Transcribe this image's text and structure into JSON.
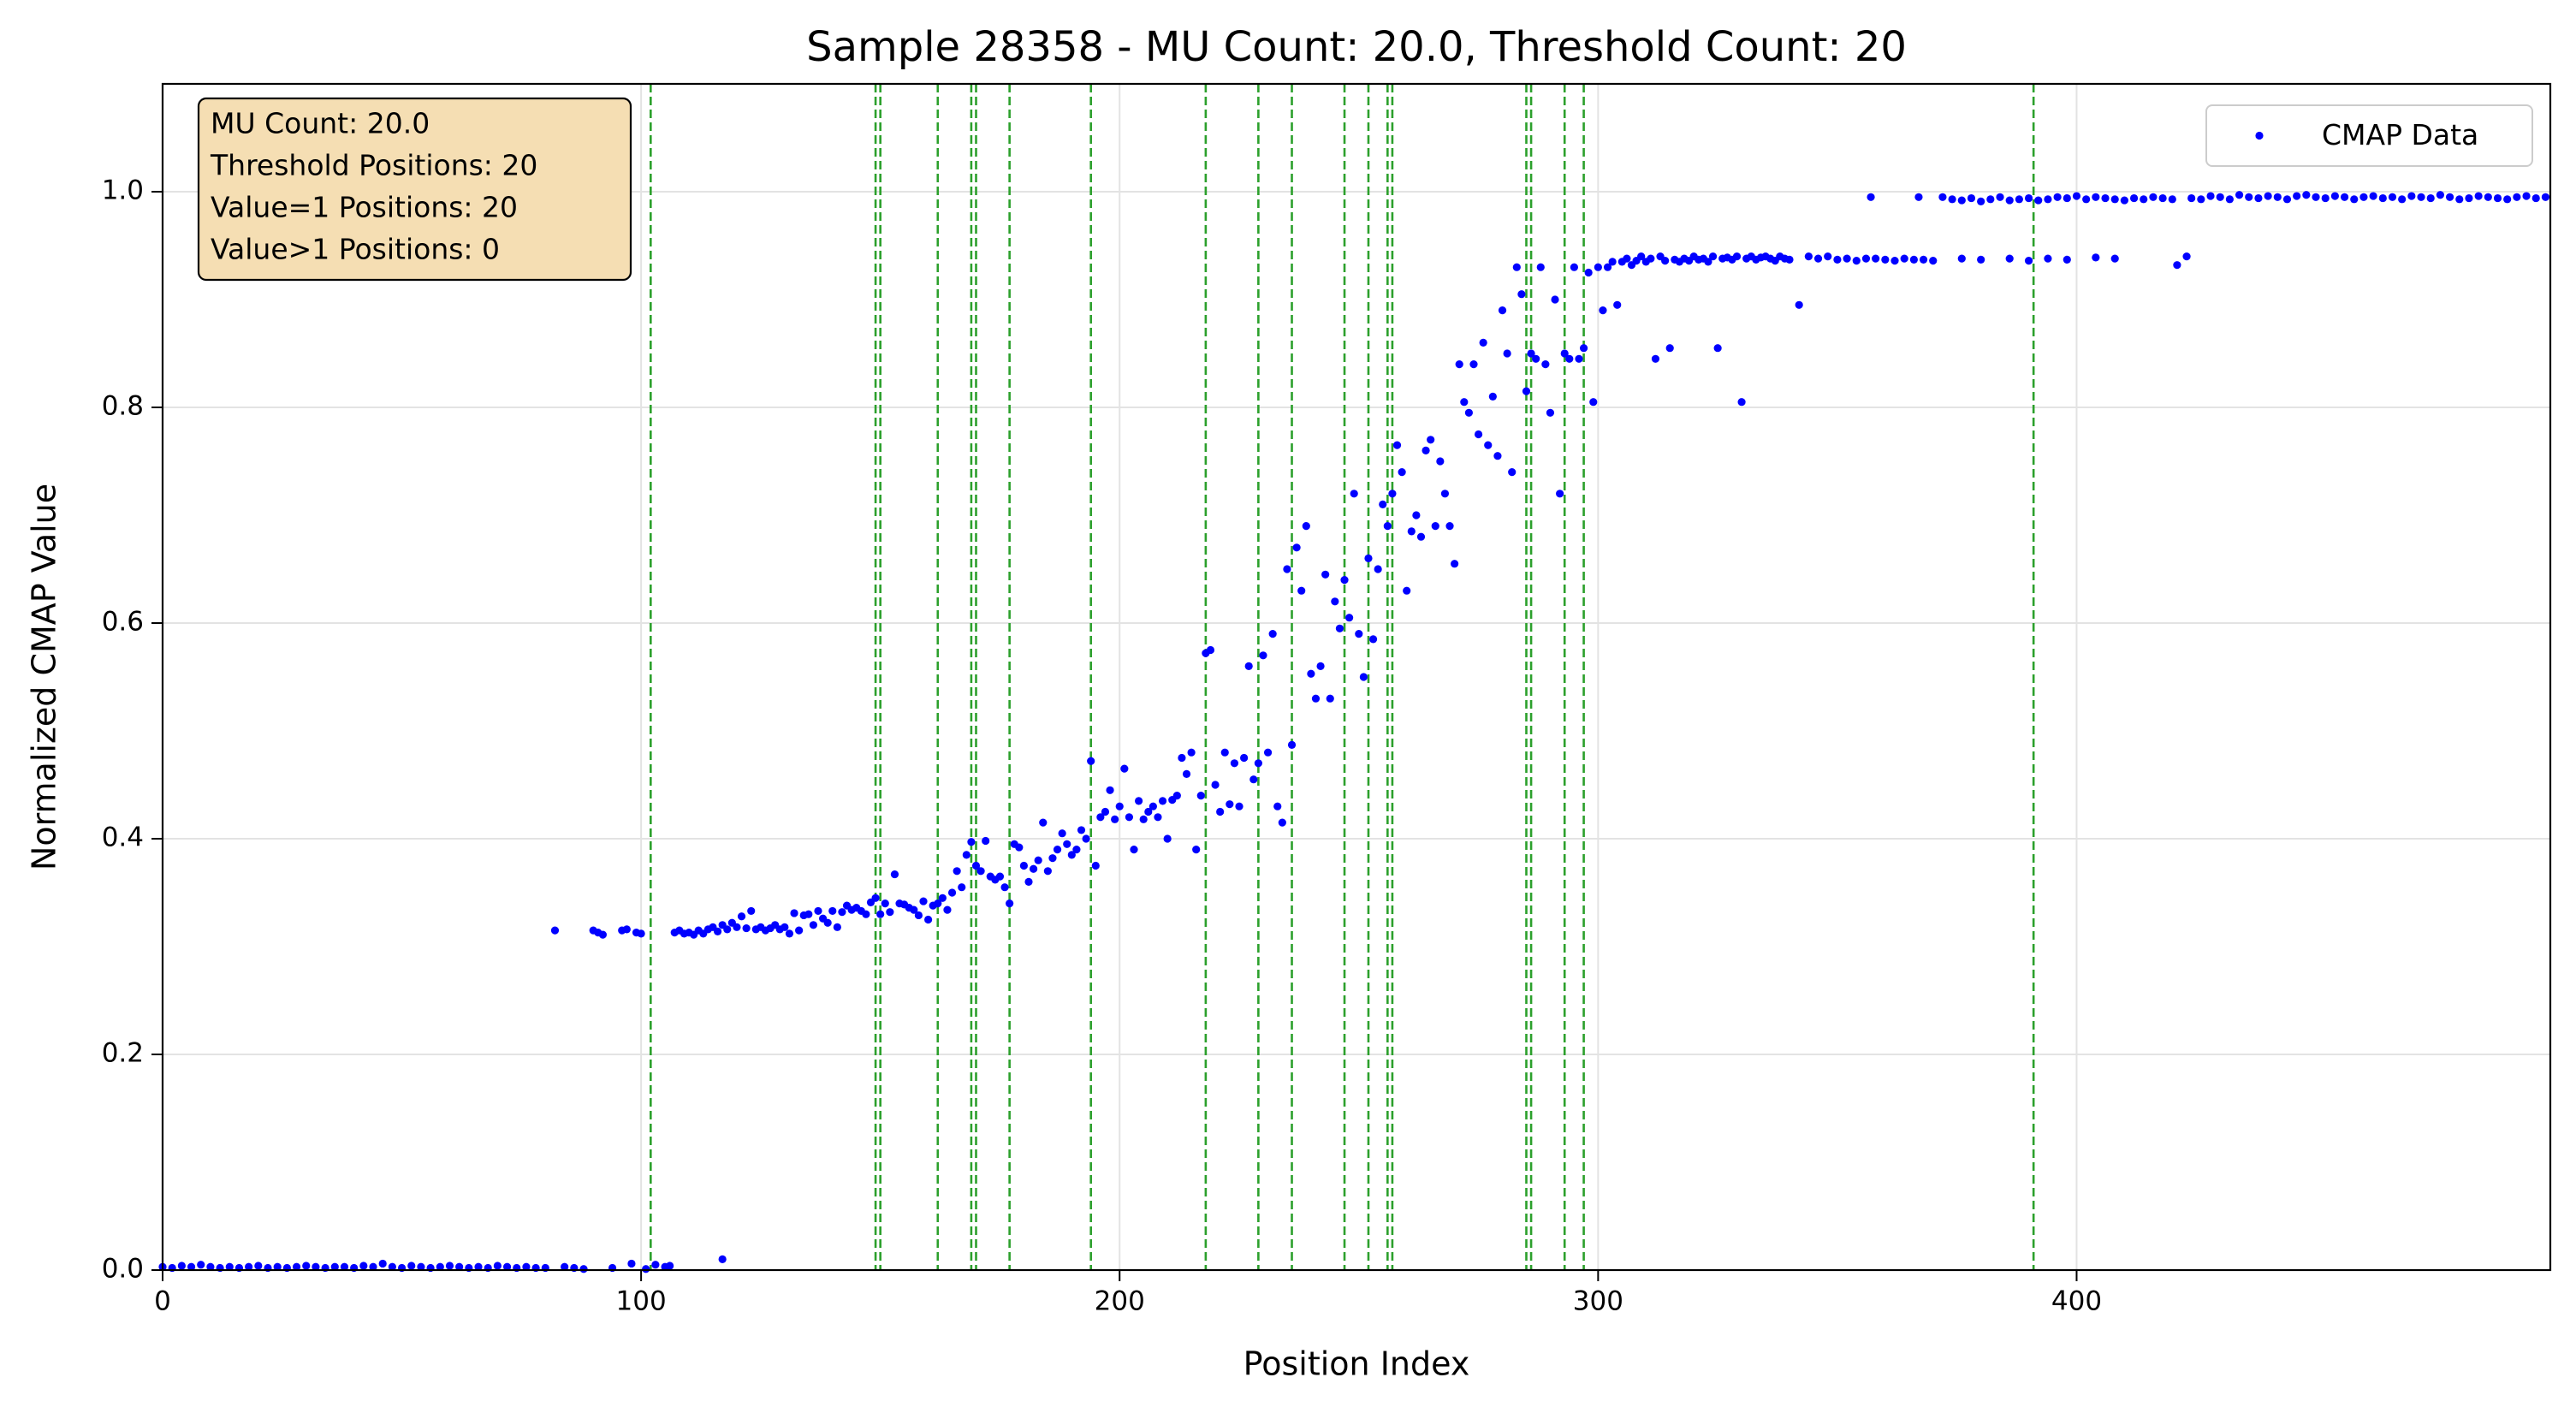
{
  "chart_data": {
    "type": "scatter",
    "title": "Sample 28358 - MU Count: 20.0, Threshold Count: 20",
    "xlabel": "Position Index",
    "ylabel": "Normalized CMAP Value",
    "xlim": [
      0,
      499
    ],
    "ylim": [
      0,
      1.1
    ],
    "xticks": [
      0,
      100,
      200,
      300,
      400
    ],
    "yticks": [
      {
        "value": 0,
        "label": "0.0"
      },
      0.2,
      0.4,
      0.6,
      0.8,
      {
        "value": 1,
        "label": "1.0"
      }
    ],
    "grid": true,
    "legend": "upper right",
    "annotation": [
      "MU Count: 20.0",
      "Threshold Positions: 20",
      "Value=1 Positions: 20",
      "Value>1 Positions: 0"
    ],
    "vlines": {
      "color": "#2ca02c",
      "values": [
        102,
        149,
        150,
        162,
        169,
        170,
        177,
        194,
        218,
        229,
        236,
        247,
        252,
        256,
        257,
        285,
        286,
        293,
        297,
        391
      ]
    },
    "x": [
      0,
      2,
      4,
      6,
      8,
      10,
      12,
      14,
      16,
      18,
      20,
      22,
      24,
      26,
      28,
      30,
      32,
      34,
      36,
      38,
      40,
      42,
      44,
      46,
      48,
      50,
      52,
      54,
      56,
      58,
      60,
      62,
      64,
      66,
      68,
      70,
      72,
      74,
      76,
      78,
      80,
      82,
      84,
      86,
      88,
      90,
      91,
      92,
      94,
      96,
      97,
      98,
      99,
      100,
      101,
      103,
      105,
      106,
      117,
      107,
      108,
      109,
      110,
      111,
      112,
      113,
      114,
      115,
      116,
      117,
      118,
      119,
      120,
      121,
      122,
      123,
      124,
      125,
      126,
      127,
      128,
      129,
      130,
      131,
      132,
      133,
      134,
      135,
      136,
      137,
      138,
      139,
      140,
      141,
      142,
      143,
      144,
      145,
      146,
      147,
      148,
      149,
      150,
      151,
      152,
      153,
      154,
      155,
      156,
      157,
      158,
      159,
      160,
      161,
      162,
      163,
      164,
      165,
      166,
      167,
      168,
      169,
      170,
      171,
      172,
      173,
      174,
      175,
      176,
      177,
      178,
      179,
      180,
      181,
      182,
      183,
      184,
      185,
      186,
      187,
      188,
      189,
      190,
      191,
      192,
      193,
      194,
      195,
      196,
      197,
      198,
      199,
      200,
      201,
      202,
      203,
      204,
      205,
      206,
      207,
      208,
      209,
      210,
      211,
      212,
      213,
      214,
      215,
      216,
      217,
      218,
      219,
      220,
      221,
      222,
      223,
      224,
      225,
      226,
      227,
      228,
      229,
      230,
      231,
      232,
      233,
      234,
      235,
      236,
      237,
      238,
      239,
      240,
      241,
      242,
      243,
      244,
      245,
      246,
      247,
      248,
      249,
      250,
      251,
      252,
      253,
      254,
      255,
      256,
      257,
      258,
      259,
      260,
      261,
      262,
      263,
      264,
      265,
      266,
      267,
      268,
      269,
      270,
      271,
      272,
      273,
      274,
      275,
      276,
      277,
      278,
      279,
      280,
      281,
      282,
      283,
      284,
      285,
      286,
      287,
      288,
      289,
      290,
      291,
      292,
      293,
      294,
      295,
      296,
      297,
      298,
      299,
      300,
      301,
      302,
      303,
      304,
      305,
      306,
      307,
      308,
      309,
      310,
      311,
      312,
      313,
      314,
      315,
      316,
      317,
      318,
      319,
      320,
      321,
      322,
      323,
      324,
      325,
      326,
      327,
      328,
      329,
      330,
      331,
      332,
      333,
      334,
      335,
      336,
      337,
      338,
      339,
      340,
      342,
      344,
      346,
      348,
      350,
      352,
      354,
      356,
      357,
      358,
      360,
      362,
      364,
      366,
      367,
      368,
      370,
      372,
      374,
      376,
      378,
      380,
      382,
      384,
      386,
      388,
      390,
      392,
      394,
      396,
      398,
      400,
      402,
      404,
      406,
      408,
      410,
      412,
      414,
      416,
      418,
      420,
      376,
      380,
      386,
      390,
      394,
      398,
      404,
      408,
      421,
      423,
      424,
      426,
      428,
      430,
      432,
      434,
      436,
      438,
      440,
      442,
      444,
      446,
      448,
      450,
      452,
      454,
      456,
      458,
      460,
      462,
      464,
      466,
      468,
      470,
      472,
      474,
      476,
      478,
      480,
      482,
      484,
      486,
      488,
      490,
      492,
      494,
      496,
      498
    ],
    "series": [
      {
        "name": "CMAP Data",
        "color": "#0000ff",
        "values": [
          0.003,
          0.002,
          0.004,
          0.003,
          0.005,
          0.003,
          0.002,
          0.003,
          0.002,
          0.003,
          0.004,
          0.002,
          0.003,
          0.002,
          0.003,
          0.004,
          0.003,
          0.002,
          0.003,
          0.003,
          0.002,
          0.004,
          0.003,
          0.006,
          0.003,
          0.002,
          0.004,
          0.003,
          0.002,
          0.003,
          0.004,
          0.003,
          0.002,
          0.003,
          0.002,
          0.004,
          0.003,
          0.002,
          0.003,
          0.002,
          0.002,
          0.315,
          0.003,
          0.002,
          0.001,
          0.315,
          0.313,
          0.311,
          0.002,
          0.315,
          0.316,
          0.006,
          0.313,
          0.312,
          0.001,
          0.005,
          0.003,
          0.004,
          0.01,
          0.313,
          0.315,
          0.312,
          0.313,
          0.311,
          0.315,
          0.312,
          0.316,
          0.318,
          0.314,
          0.32,
          0.316,
          0.322,
          0.318,
          0.328,
          0.317,
          0.333,
          0.316,
          0.318,
          0.315,
          0.317,
          0.32,
          0.316,
          0.318,
          0.312,
          0.331,
          0.315,
          0.329,
          0.33,
          0.32,
          0.333,
          0.326,
          0.322,
          0.333,
          0.318,
          0.332,
          0.338,
          0.334,
          0.336,
          0.333,
          0.33,
          0.341,
          0.345,
          0.33,
          0.34,
          0.332,
          0.367,
          0.34,
          0.339,
          0.336,
          0.334,
          0.329,
          0.342,
          0.325,
          0.338,
          0.34,
          0.345,
          0.334,
          0.35,
          0.37,
          0.355,
          0.385,
          0.397,
          0.375,
          0.37,
          0.398,
          0.365,
          0.362,
          0.365,
          0.355,
          0.34,
          0.395,
          0.392,
          0.375,
          0.36,
          0.372,
          0.38,
          0.415,
          0.37,
          0.382,
          0.39,
          0.405,
          0.395,
          0.385,
          0.39,
          0.408,
          0.4,
          0.472,
          0.375,
          0.42,
          0.425,
          0.445,
          0.418,
          0.43,
          0.465,
          0.42,
          0.39,
          0.435,
          0.418,
          0.425,
          0.43,
          0.42,
          0.435,
          0.4,
          0.436,
          0.44,
          0.475,
          0.46,
          0.48,
          0.39,
          0.44,
          0.572,
          0.575,
          0.45,
          0.425,
          0.48,
          0.432,
          0.47,
          0.43,
          0.475,
          0.56,
          0.455,
          0.47,
          0.57,
          0.48,
          0.59,
          0.43,
          0.415,
          0.65,
          0.487,
          0.67,
          0.63,
          0.69,
          0.553,
          0.53,
          0.56,
          0.645,
          0.53,
          0.62,
          0.595,
          0.64,
          0.605,
          0.72,
          0.59,
          0.55,
          0.66,
          0.585,
          0.65,
          0.71,
          0.69,
          0.72,
          0.765,
          0.74,
          0.63,
          0.685,
          0.7,
          0.68,
          0.76,
          0.77,
          0.69,
          0.75,
          0.72,
          0.69,
          0.655,
          0.84,
          0.805,
          0.795,
          0.84,
          0.775,
          0.86,
          0.765,
          0.81,
          0.755,
          0.89,
          0.85,
          0.74,
          0.93,
          0.905,
          0.815,
          0.85,
          0.845,
          0.93,
          0.84,
          0.795,
          0.9,
          0.72,
          0.85,
          0.845,
          0.93,
          0.845,
          0.855,
          0.925,
          0.805,
          0.93,
          0.89,
          0.93,
          0.935,
          0.895,
          0.935,
          0.938,
          0.932,
          0.936,
          0.94,
          0.935,
          0.938,
          0.845,
          0.94,
          0.936,
          0.855,
          0.937,
          0.935,
          0.938,
          0.936,
          0.94,
          0.937,
          0.938,
          0.935,
          0.94,
          0.855,
          0.938,
          0.939,
          0.937,
          0.94,
          0.805,
          0.938,
          0.94,
          0.937,
          0.939,
          0.94,
          0.938,
          0.936,
          0.94,
          0.938,
          0.937,
          0.895,
          0.94,
          0.938,
          0.94,
          0.937,
          0.938,
          0.936,
          0.938,
          0.995,
          0.938,
          0.937,
          0.936,
          0.938,
          0.937,
          0.995,
          0.937,
          0.936,
          0.995,
          0.993,
          0.992,
          0.994,
          0.991,
          0.993,
          0.995,
          0.992,
          0.993,
          0.994,
          0.992,
          0.993,
          0.995,
          0.994,
          0.996,
          0.993,
          0.995,
          0.994,
          0.993,
          0.992,
          0.994,
          0.993,
          0.995,
          0.994,
          0.993,
          0.938,
          0.937,
          0.938,
          0.936,
          0.938,
          0.937,
          0.939,
          0.938,
          0.932,
          0.94,
          0.994,
          0.993,
          0.996,
          0.995,
          0.993,
          0.997,
          0.995,
          0.994,
          0.996,
          0.995,
          0.993,
          0.996,
          0.997,
          0.995,
          0.994,
          0.996,
          0.995,
          0.993,
          0.995,
          0.996,
          0.994,
          0.995,
          0.993,
          0.996,
          0.995,
          0.994,
          0.997,
          0.995,
          0.993,
          0.994,
          0.996,
          0.995,
          0.994,
          0.993,
          0.995,
          0.996,
          0.994,
          0.995
        ]
      }
    ]
  }
}
